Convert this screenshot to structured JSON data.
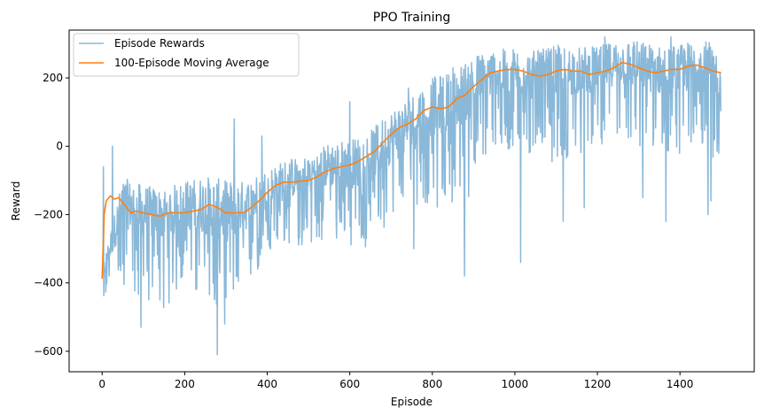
{
  "chart_data": {
    "type": "line",
    "title": "PPO Training",
    "xlabel": "Episode",
    "ylabel": "Reward",
    "xlim": [
      -80,
      1580
    ],
    "ylim": [
      -660,
      340
    ],
    "xticks": [
      0,
      200,
      400,
      600,
      800,
      1000,
      1200,
      1400
    ],
    "yticks": [
      -600,
      -400,
      -200,
      0,
      200
    ],
    "legend_position": "upper-left",
    "series": [
      {
        "name": "Episode Rewards",
        "color": "#8ab8d8",
        "style": "noisy raw episode rewards",
        "x": [
          0,
          50,
          100,
          150,
          200,
          250,
          300,
          350,
          400,
          450,
          500,
          550,
          600,
          650,
          700,
          750,
          800,
          850,
          900,
          950,
          1000,
          1050,
          1100,
          1150,
          1200,
          1250,
          1300,
          1350,
          1400,
          1450,
          1500
        ],
        "values": [
          -380,
          -170,
          -200,
          -210,
          -180,
          -180,
          -200,
          -180,
          -130,
          -100,
          -90,
          -60,
          -60,
          -40,
          20,
          60,
          110,
          120,
          170,
          210,
          210,
          200,
          210,
          215,
          220,
          240,
          230,
          215,
          220,
          230,
          210
        ],
        "spread": [
          30,
          110,
          120,
          120,
          110,
          130,
          140,
          110,
          90,
          90,
          90,
          100,
          110,
          120,
          120,
          130,
          130,
          140,
          140,
          100,
          110,
          110,
          120,
          110,
          100,
          100,
          110,
          110,
          110,
          120,
          110
        ],
        "spikes": [
          [
            3,
            -60
          ],
          [
            25,
            0
          ],
          [
            94,
            -530
          ],
          [
            140,
            -450
          ],
          [
            279,
            -610
          ],
          [
            297,
            -520
          ],
          [
            320,
            80
          ],
          [
            387,
            30
          ],
          [
            408,
            -300
          ],
          [
            600,
            130
          ],
          [
            640,
            -270
          ],
          [
            742,
            170
          ],
          [
            755,
            -300
          ],
          [
            850,
            230
          ],
          [
            878,
            -380
          ],
          [
            948,
            270
          ],
          [
            1014,
            -340
          ],
          [
            1117,
            -220
          ],
          [
            1168,
            -180
          ],
          [
            1218,
            320
          ],
          [
            1288,
            305
          ],
          [
            1310,
            -150
          ],
          [
            1366,
            -220
          ],
          [
            1378,
            320
          ],
          [
            1468,
            -200
          ],
          [
            1475,
            -160
          ],
          [
            1494,
            -20
          ]
        ]
      },
      {
        "name": "100-Episode Moving Average",
        "color": "#ff7f0e",
        "x": [
          0,
          5,
          10,
          20,
          30,
          40,
          50,
          60,
          70,
          80,
          100,
          120,
          140,
          150,
          160,
          180,
          200,
          220,
          240,
          260,
          270,
          280,
          300,
          320,
          340,
          350,
          360,
          380,
          400,
          420,
          440,
          450,
          460,
          500,
          520,
          540,
          560,
          580,
          600,
          620,
          640,
          660,
          680,
          700,
          720,
          740,
          760,
          780,
          800,
          820,
          840,
          860,
          880,
          900,
          920,
          940,
          960,
          980,
          1000,
          1020,
          1040,
          1060,
          1080,
          1100,
          1120,
          1140,
          1160,
          1180,
          1200,
          1220,
          1240,
          1260,
          1280,
          1300,
          1320,
          1340,
          1360,
          1380,
          1400,
          1420,
          1440,
          1460,
          1480,
          1500
        ],
        "values": [
          -388,
          -200,
          -160,
          -145,
          -155,
          -150,
          -165,
          -180,
          -195,
          -190,
          -195,
          -200,
          -205,
          -200,
          -195,
          -195,
          -195,
          -190,
          -185,
          -170,
          -175,
          -180,
          -195,
          -195,
          -195,
          -190,
          -180,
          -160,
          -135,
          -115,
          -105,
          -105,
          -105,
          -100,
          -90,
          -75,
          -65,
          -60,
          -55,
          -45,
          -30,
          -15,
          10,
          35,
          55,
          65,
          80,
          105,
          115,
          110,
          115,
          140,
          150,
          175,
          195,
          215,
          220,
          225,
          225,
          220,
          210,
          205,
          210,
          220,
          225,
          220,
          220,
          210,
          215,
          220,
          230,
          245,
          240,
          230,
          220,
          215,
          220,
          225,
          225,
          235,
          238,
          230,
          220,
          215
        ]
      }
    ]
  }
}
